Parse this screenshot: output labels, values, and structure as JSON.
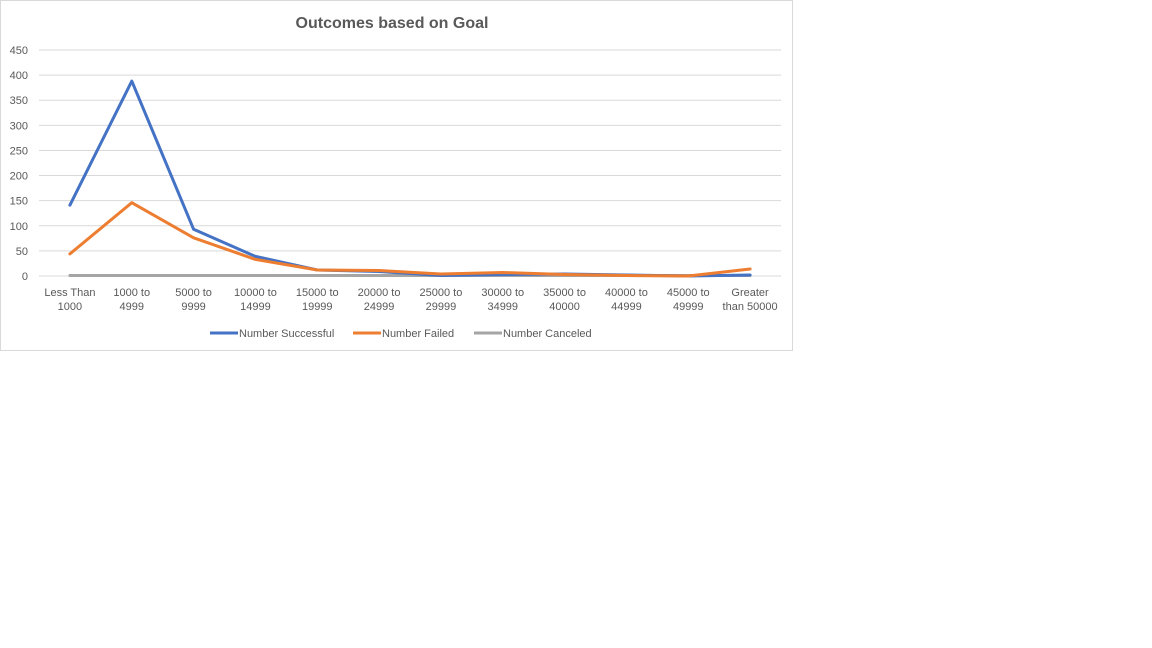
{
  "chart_data": {
    "type": "line",
    "title": "Outcomes based on Goal",
    "xlabel": "",
    "ylabel": "",
    "ylim": [
      0,
      450
    ],
    "yticks": [
      0,
      50,
      100,
      150,
      200,
      250,
      300,
      350,
      400,
      450
    ],
    "grid": true,
    "legend_position": "bottom",
    "categories": [
      [
        "Less Than",
        "1000"
      ],
      [
        "1000 to",
        "4999"
      ],
      [
        "5000 to",
        "9999"
      ],
      [
        "10000 to",
        "14999"
      ],
      [
        "15000 to",
        "19999"
      ],
      [
        "20000 to",
        "24999"
      ],
      [
        "25000 to",
        "29999"
      ],
      [
        "30000 to",
        "34999"
      ],
      [
        "35000 to",
        "40000"
      ],
      [
        "40000 to",
        "44999"
      ],
      [
        "45000 to",
        "49999"
      ],
      [
        "Greater",
        "than 50000"
      ]
    ],
    "series": [
      {
        "name": "Number Successful",
        "color": "#4472c4",
        "values": [
          141,
          388,
          93,
          39,
          12,
          9,
          1,
          3,
          4,
          2,
          0,
          2
        ]
      },
      {
        "name": "Number Failed",
        "color": "#ed7d31",
        "values": [
          44,
          146,
          76,
          33,
          12,
          11,
          4,
          7,
          3,
          1,
          0,
          14
        ]
      },
      {
        "name": "Number Canceled",
        "color": "#a5a5a5",
        "values": [
          1,
          1,
          1,
          1,
          1,
          1,
          1,
          1,
          1,
          1,
          1,
          1
        ]
      }
    ]
  }
}
